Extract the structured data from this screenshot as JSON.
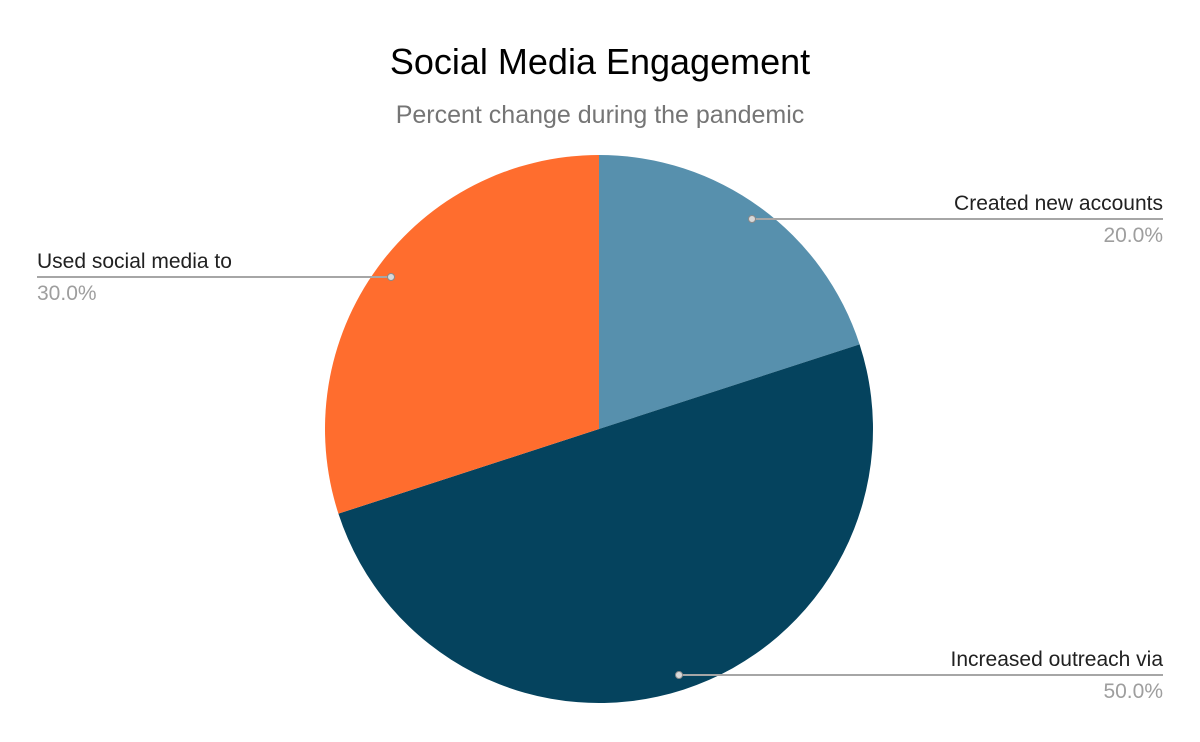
{
  "page": {
    "background_color": "#FFFFFF"
  },
  "chart_data": {
    "type": "pie",
    "title": "Social Media Engagement",
    "subtitle": "Percent change during the pandemic",
    "start_angle_deg": 0,
    "direction": "clockwise",
    "legend_position": "labeled-callouts",
    "grid": "off",
    "slices": [
      {
        "label": "Created new accounts",
        "value": 20.0,
        "display_value": "20.0%",
        "color": "#5790AD"
      },
      {
        "label": "Increased outreach via",
        "value": 50.0,
        "display_value": "50.0%",
        "color": "#05435E"
      },
      {
        "label": "Used social media to",
        "value": 30.0,
        "display_value": "30.0%",
        "color": "#FF6D2E"
      }
    ],
    "colors": {
      "title": "#000000",
      "subtitle": "#757575",
      "callout_label": "#212121",
      "callout_value": "#9E9E9E",
      "callout_line": "#A6A6A6"
    }
  }
}
